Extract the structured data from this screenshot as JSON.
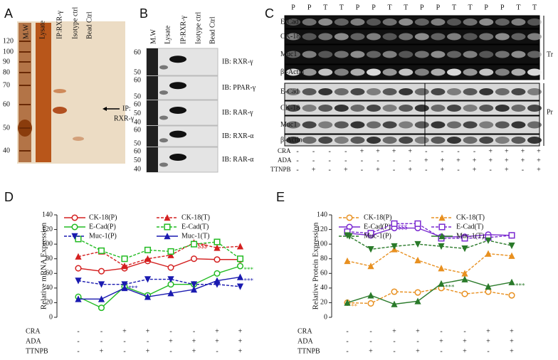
{
  "panel_labels": [
    "A",
    "B",
    "C",
    "D",
    "E"
  ],
  "gel_a": {
    "columns": [
      "M.W",
      "Lysate",
      "IP:RXR-γ",
      "Isotype ctrl",
      "Bead Ctrl"
    ],
    "ladder": [
      "120",
      "100",
      "90",
      "80",
      "70",
      "60",
      "50",
      "40"
    ],
    "arrow_label": [
      "IP:",
      "RXR-γ"
    ]
  },
  "gel_b": {
    "columns": [
      "M.W",
      "Lysate",
      "IP:RXR-γ",
      "Isotype ctrl",
      "Bead Ctrl"
    ],
    "blots": [
      {
        "ladder": [
          "60",
          "50"
        ],
        "label": "IB: RXR-γ"
      },
      {
        "ladder": [
          "60",
          "50"
        ],
        "label": "IB: PPAR-γ"
      },
      {
        "ladder": [
          "60",
          "50",
          "40"
        ],
        "label": "IB: RAR-γ"
      },
      {
        "ladder": [
          "60",
          "50"
        ],
        "label": "IB: RXR-α"
      },
      {
        "ladder": [
          "60",
          "50",
          "40"
        ],
        "label": "IB: RAR-α"
      }
    ]
  },
  "gel_c": {
    "lanes": [
      "P",
      "P",
      "T",
      "T",
      "P",
      "P",
      "T",
      "T",
      "P",
      "P",
      "T",
      "T",
      "P",
      "P",
      "T",
      "T"
    ],
    "transcript": {
      "group": "Tr",
      "rows": [
        "E-Cad",
        "CK-18",
        "Muc1",
        "β -Actin"
      ]
    },
    "protein": {
      "group": "Pr",
      "rows": [
        "E-Cad",
        "CK-18",
        "Muc1",
        "β-Actin"
      ]
    },
    "conditions": [
      {
        "name": "CRA",
        "values": [
          "-",
          "-",
          "-",
          "-",
          "+",
          "+",
          "+",
          "+",
          "-",
          "-",
          "-",
          "-",
          "+",
          "+",
          "+",
          "+"
        ]
      },
      {
        "name": "ADA",
        "values": [
          "-",
          "-",
          "-",
          "-",
          "-",
          "-",
          "-",
          "-",
          "+",
          "+",
          "+",
          "+",
          "+",
          "+",
          "+",
          "+"
        ]
      },
      {
        "name": "TTNPB",
        "values": [
          "-",
          "+",
          "-",
          "+",
          "-",
          "+",
          "-",
          "+",
          "-",
          "+",
          "-",
          "+",
          "-",
          "+",
          "-",
          "+"
        ]
      }
    ]
  },
  "chart_data": [
    {
      "type": "line",
      "ylabel": "Relative mRNA Expression",
      "categories": [
        null,
        null,
        null,
        null,
        null,
        null,
        null,
        null
      ],
      "ylim": [
        0,
        140
      ],
      "yticks": [
        0,
        20,
        40,
        60,
        80,
        100,
        120,
        140
      ],
      "series": [
        {
          "name": "CK-18(P)",
          "color": "#d42020",
          "marker": "circle",
          "dashed": false,
          "values": [
            67,
            63,
            67,
            77,
            68,
            80,
            79,
            79
          ]
        },
        {
          "name": "CK-18(T)",
          "color": "#d42020",
          "marker": "triangle",
          "dashed": true,
          "values": [
            83,
            90,
            70,
            80,
            85,
            102,
            95,
            97
          ]
        },
        {
          "name": "E-Cad(P)",
          "color": "#22bb22",
          "marker": "circle",
          "dashed": false,
          "values": [
            28,
            13,
            42,
            30,
            45,
            45,
            60,
            70
          ]
        },
        {
          "name": "E-Cad(T)",
          "color": "#22bb22",
          "marker": "square",
          "dashed": true,
          "values": [
            107,
            91,
            80,
            92,
            90,
            100,
            103,
            80
          ]
        },
        {
          "name": "Muc-1(P)",
          "color": "#1a1ab0",
          "marker": "triangle-down",
          "dashed": true,
          "values": [
            50,
            45,
            45,
            52,
            52,
            45,
            45,
            42
          ]
        },
        {
          "name": "Muc-1(T)",
          "color": "#1a1ab0",
          "marker": "triangle",
          "dashed": false,
          "values": [
            25,
            25,
            40,
            28,
            33,
            38,
            50,
            55
          ]
        }
      ],
      "conditions": [
        {
          "name": "CRA",
          "values": [
            "-",
            "-",
            "+",
            "+",
            "-",
            "-",
            "+",
            "+"
          ]
        },
        {
          "name": "ADA",
          "values": [
            "-",
            "-",
            "-",
            "-",
            "+",
            "+",
            "+",
            "+"
          ]
        },
        {
          "name": "TTNPB",
          "values": [
            "-",
            "+",
            "-",
            "+",
            "-",
            "+",
            "-",
            "+"
          ]
        }
      ],
      "annotations": [
        {
          "series": 1,
          "index": 5,
          "text": "$$$"
        },
        {
          "series": 4,
          "index": 2,
          "text": "***"
        },
        {
          "series": 5,
          "index": 7,
          "text": "***"
        },
        {
          "series": 2,
          "index": 7,
          "text": "***"
        }
      ]
    },
    {
      "type": "line",
      "ylabel": "Relative Protein Expression",
      "categories": [
        null,
        null,
        null,
        null,
        null,
        null,
        null,
        null
      ],
      "ylim": [
        0,
        140
      ],
      "yticks": [
        0,
        20,
        40,
        60,
        80,
        100,
        120,
        140
      ],
      "series": [
        {
          "name": "CK-18(P)",
          "color": "#e89020",
          "marker": "circle",
          "dashed": true,
          "values": [
            20,
            19,
            35,
            34,
            40,
            32,
            35,
            30
          ]
        },
        {
          "name": "CK-18(T)",
          "color": "#e89020",
          "marker": "triangle",
          "dashed": true,
          "values": [
            77,
            70,
            93,
            78,
            67,
            60,
            87,
            84
          ]
        },
        {
          "name": "E-Cad(P)",
          "color": "#7a2ad0",
          "marker": "circle",
          "dashed": false,
          "values": [
            115,
            112,
            122,
            122,
            110,
            110,
            113,
            112
          ]
        },
        {
          "name": "E-Cad(T)",
          "color": "#7a2ad0",
          "marker": "square",
          "dashed": true,
          "values": [
            117,
            115,
            128,
            128,
            108,
            108,
            109,
            112
          ]
        },
        {
          "name": "Muc-1(P)",
          "color": "#2a7a2a",
          "marker": "triangle-down",
          "dashed": true,
          "values": [
            112,
            93,
            97,
            100,
            97,
            94,
            105,
            98
          ]
        },
        {
          "name": "Muc-1(T)",
          "color": "#2a7a2a",
          "marker": "triangle",
          "dashed": false,
          "values": [
            20,
            30,
            18,
            22,
            46,
            52,
            42,
            48
          ]
        }
      ],
      "conditions": [
        {
          "name": "CRA",
          "values": [
            "-",
            "-",
            "+",
            "+",
            "-",
            "-",
            "+",
            "+"
          ]
        },
        {
          "name": "ADA",
          "values": [
            "-",
            "-",
            "-",
            "-",
            "+",
            "+",
            "+",
            "+"
          ]
        },
        {
          "name": "TTNPB",
          "values": [
            "-",
            "+",
            "-",
            "+",
            "-",
            "+",
            "-",
            "+"
          ]
        }
      ],
      "annotations": [
        {
          "series": 3,
          "index": 2,
          "text": "$$$"
        },
        {
          "series": 0,
          "index": 0,
          "text": "**"
        },
        {
          "series": 5,
          "index": 4,
          "text": "***"
        },
        {
          "series": 5,
          "index": 7,
          "text": "***"
        }
      ]
    }
  ]
}
